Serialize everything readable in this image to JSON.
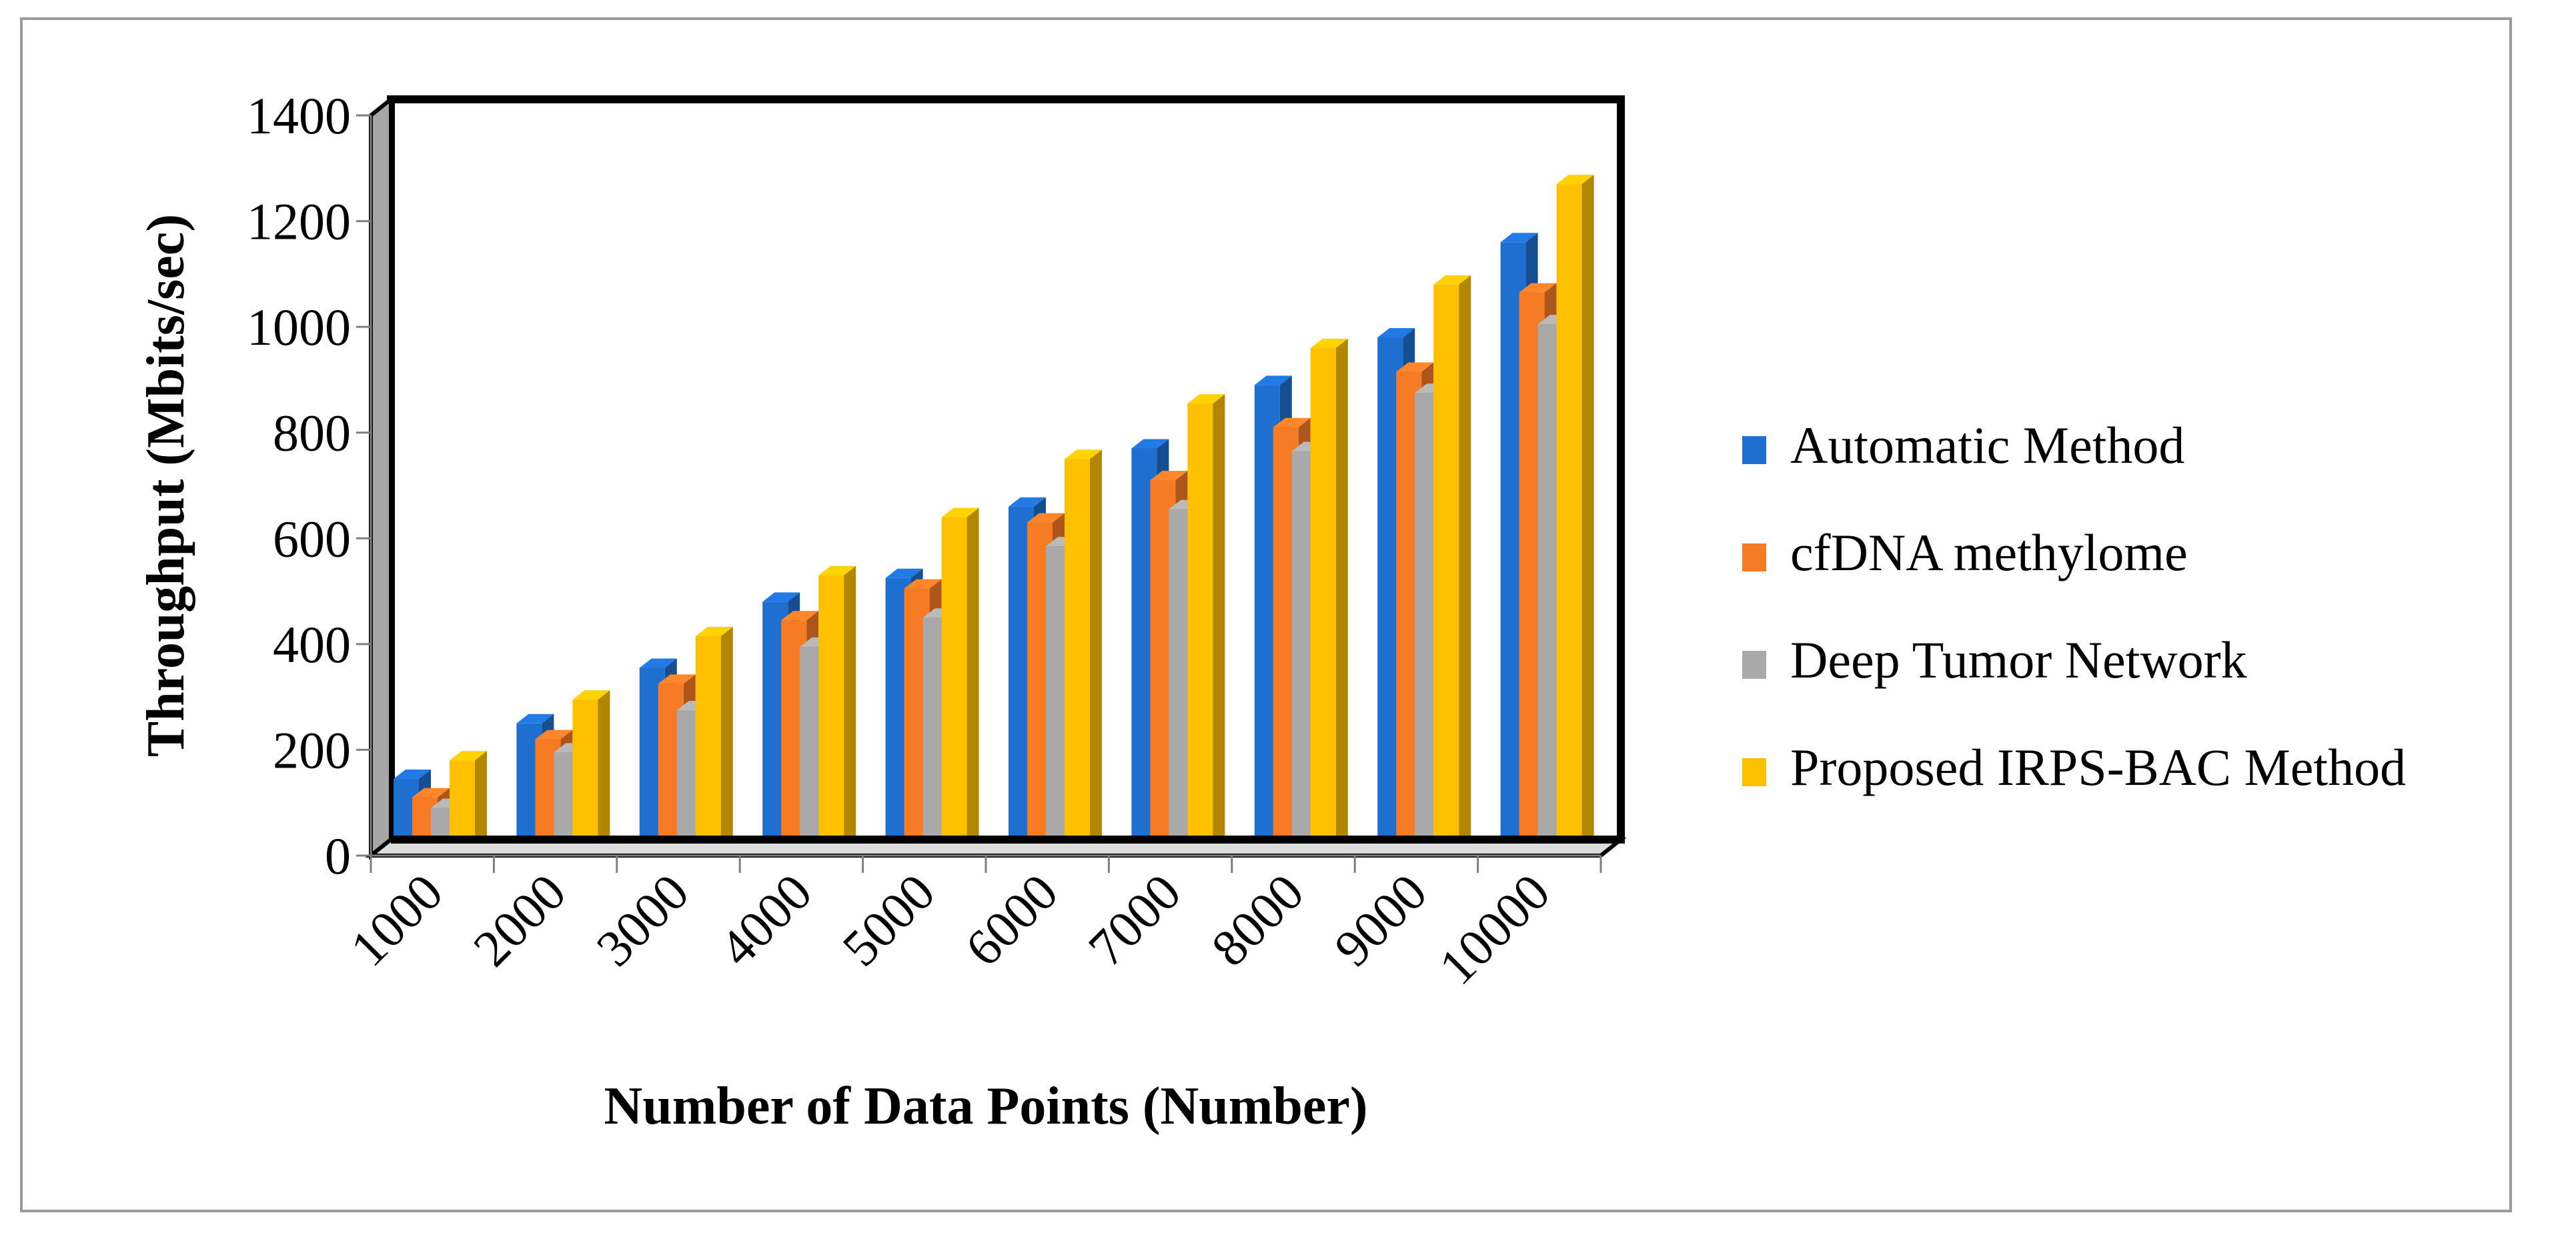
{
  "chart_data": {
    "type": "bar",
    "title": "",
    "xlabel": "Number of Data Points (Number)",
    "ylabel": "Throughput (Mbits/sec)",
    "ylim": [
      0,
      1400
    ],
    "yticks": [
      0,
      200,
      400,
      600,
      800,
      1000,
      1200,
      1400
    ],
    "categories": [
      "1000",
      "2000",
      "3000",
      "4000",
      "5000",
      "6000",
      "7000",
      "8000",
      "9000",
      "10000"
    ],
    "legend_position": "right",
    "series": [
      {
        "name": "Automatic Method",
        "color": "#1f6fd1",
        "values": [
          145,
          250,
          355,
          480,
          525,
          660,
          770,
          890,
          980,
          1160
        ]
      },
      {
        "name": "cfDNA methylome",
        "color": "#f77a25",
        "values": [
          110,
          220,
          325,
          445,
          505,
          630,
          710,
          810,
          915,
          1065
        ]
      },
      {
        "name": "Deep Tumor Network",
        "color": "#a9a9a9",
        "values": [
          90,
          195,
          275,
          395,
          450,
          585,
          655,
          765,
          875,
          1005
        ]
      },
      {
        "name": "Proposed IRPS-BAC Method",
        "color": "#ffc000",
        "values": [
          180,
          295,
          415,
          530,
          640,
          750,
          855,
          960,
          1080,
          1270
        ]
      }
    ]
  }
}
